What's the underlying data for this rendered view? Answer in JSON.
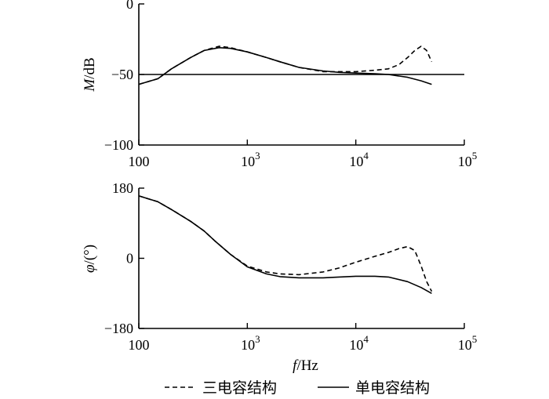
{
  "chart_data": [
    {
      "type": "line",
      "xlabel": "",
      "ylabel": "M/dB",
      "xscale": "log",
      "xlim": [
        100,
        100000
      ],
      "ylim": [
        -100,
        0
      ],
      "x_tick_labels": [
        "100",
        "10",
        "10",
        "10"
      ],
      "x_tick_exponents": [
        "",
        "3",
        "4",
        "5"
      ],
      "y_tick_labels": [
        "0",
        "−50",
        "−100"
      ],
      "y_ticks": [
        0,
        -50,
        -100
      ],
      "reference_line": -50,
      "series": [
        {
          "name": "三电容结构",
          "style": "dashed",
          "x": [
            100,
            150,
            200,
            300,
            400,
            550,
            700,
            1000,
            1500,
            2000,
            3000,
            5000,
            7000,
            10000,
            15000,
            20000,
            25000,
            30000,
            35000,
            40000,
            45000,
            50000
          ],
          "y": [
            -57,
            -53,
            -46,
            -38,
            -33,
            -30,
            -31,
            -34,
            -38,
            -41,
            -45,
            -48,
            -48,
            -48,
            -47,
            -46,
            -43,
            -38,
            -33,
            -30,
            -33,
            -41
          ]
        },
        {
          "name": "单电容结构",
          "style": "solid",
          "x": [
            100,
            150,
            200,
            300,
            400,
            550,
            700,
            1000,
            1500,
            2000,
            3000,
            5000,
            7000,
            10000,
            15000,
            20000,
            30000,
            40000,
            50000
          ],
          "y": [
            -57,
            -53,
            -46,
            -38,
            -33,
            -31,
            -31.5,
            -34,
            -38,
            -41,
            -45,
            -47.5,
            -48.5,
            -49,
            -49.5,
            -50,
            -52,
            -54.5,
            -57
          ]
        }
      ]
    },
    {
      "type": "line",
      "xlabel": "f/Hz",
      "ylabel": "φ/(°)",
      "xscale": "log",
      "xlim": [
        100,
        100000
      ],
      "ylim": [
        -180,
        180
      ],
      "x_tick_labels": [
        "100",
        "10",
        "10",
        "10"
      ],
      "x_tick_exponents": [
        "",
        "3",
        "4",
        "5"
      ],
      "y_tick_labels": [
        "180",
        "0",
        "−180"
      ],
      "y_ticks": [
        180,
        0,
        -180
      ],
      "series": [
        {
          "name": "三电容结构",
          "style": "dashed",
          "x": [
            100,
            150,
            200,
            300,
            400,
            500,
            700,
            1000,
            1500,
            2000,
            3000,
            5000,
            7000,
            10000,
            15000,
            20000,
            25000,
            30000,
            35000,
            40000,
            45000,
            50000
          ],
          "y": [
            160,
            145,
            125,
            95,
            70,
            45,
            10,
            -20,
            -35,
            -40,
            -42,
            -35,
            -25,
            -10,
            5,
            15,
            25,
            30,
            20,
            -20,
            -60,
            -85
          ]
        },
        {
          "name": "单电容结构",
          "style": "solid",
          "x": [
            100,
            150,
            200,
            300,
            400,
            500,
            700,
            1000,
            1500,
            2000,
            3000,
            5000,
            7000,
            10000,
            15000,
            20000,
            30000,
            40000,
            50000
          ],
          "y": [
            160,
            145,
            125,
            95,
            70,
            45,
            10,
            -22,
            -40,
            -47,
            -50,
            -50,
            -48,
            -46,
            -46,
            -48,
            -60,
            -75,
            -90
          ]
        }
      ]
    }
  ],
  "legend": {
    "items": [
      {
        "label": "三电容结构",
        "style": "dashed"
      },
      {
        "label": "单电容结构",
        "style": "solid"
      }
    ]
  }
}
